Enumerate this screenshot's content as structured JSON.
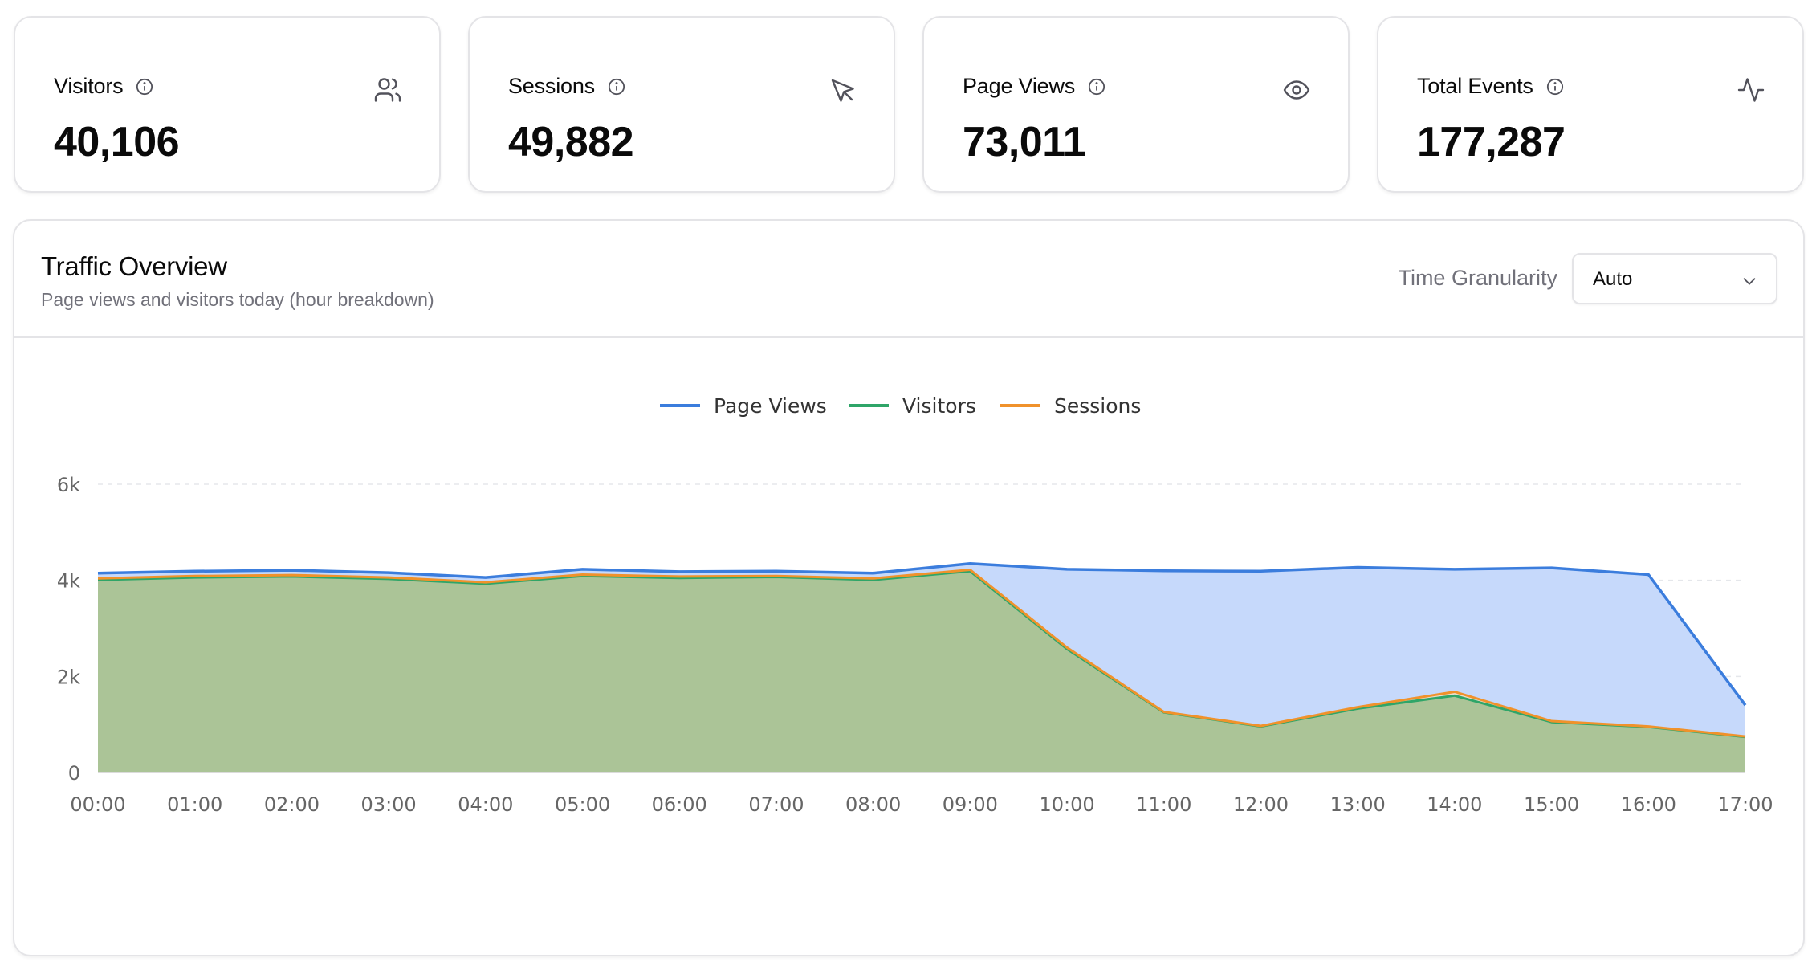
{
  "stats": [
    {
      "label": "Visitors",
      "value": "40,106",
      "icon": "users-icon"
    },
    {
      "label": "Sessions",
      "value": "49,882",
      "icon": "cursor-icon"
    },
    {
      "label": "Page Views",
      "value": "73,011",
      "icon": "eye-icon"
    },
    {
      "label": "Total Events",
      "value": "177,287",
      "icon": "activity-icon"
    }
  ],
  "traffic": {
    "title": "Traffic Overview",
    "subtitle": "Page views and visitors today (hour breakdown)",
    "granularity_label": "Time Granularity",
    "granularity_value": "Auto"
  },
  "colors": {
    "page_views": "#3b7ddd",
    "visitors": "#2fa568",
    "sessions": "#f0922b"
  },
  "chart_data": {
    "type": "area",
    "x": [
      "00:00",
      "01:00",
      "02:00",
      "03:00",
      "04:00",
      "05:00",
      "06:00",
      "07:00",
      "08:00",
      "09:00",
      "10:00",
      "11:00",
      "12:00",
      "13:00",
      "14:00",
      "15:00",
      "16:00",
      "17:00"
    ],
    "series": [
      {
        "name": "Page Views",
        "values": [
          4150,
          4190,
          4210,
          4160,
          4060,
          4230,
          4180,
          4190,
          4150,
          4350,
          4230,
          4200,
          4190,
          4270,
          4230,
          4260,
          4120,
          1400
        ]
      },
      {
        "name": "Visitors",
        "values": [
          4010,
          4060,
          4080,
          4030,
          3930,
          4090,
          4050,
          4070,
          4010,
          4190,
          2570,
          1250,
          960,
          1330,
          1600,
          1050,
          950,
          740
        ]
      },
      {
        "name": "Sessions",
        "values": [
          4040,
          4090,
          4110,
          4060,
          3960,
          4120,
          4080,
          4090,
          4040,
          4220,
          2600,
          1260,
          970,
          1360,
          1680,
          1070,
          960,
          750
        ]
      }
    ],
    "yticks": [
      "0",
      "2k",
      "4k",
      "6k"
    ],
    "ylim": [
      0,
      6000
    ],
    "grid": true,
    "legend": "top-center"
  }
}
